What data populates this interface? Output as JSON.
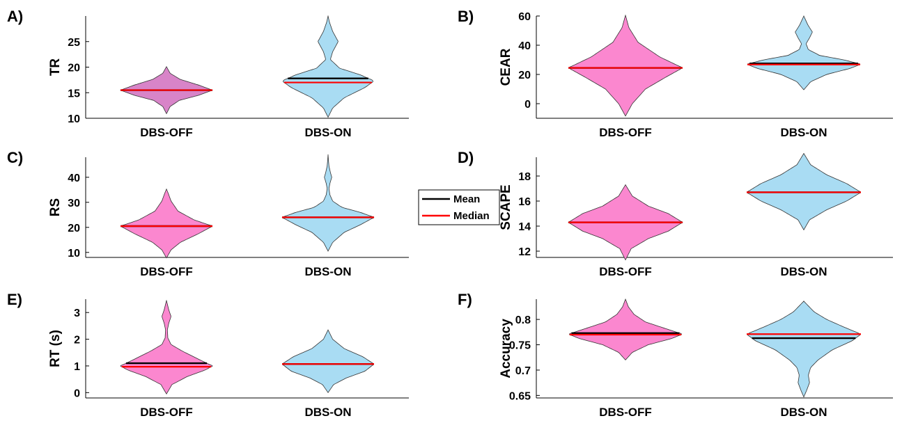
{
  "legend": {
    "items": [
      {
        "label": "Mean",
        "color": "#000000"
      },
      {
        "label": "Median",
        "color": "#ff0000"
      }
    ]
  },
  "chart_data": [
    {
      "panel": "A)",
      "type": "violin",
      "ylabel": "TR",
      "categories": [
        "DBS-OFF",
        "DBS-ON"
      ],
      "ylim": [
        10,
        30
      ],
      "yticks": [
        10,
        15,
        20,
        25
      ],
      "violins": [
        {
          "category": "DBS-OFF",
          "color": "#d884c8",
          "ymin": 10.9,
          "ymax": 20.1,
          "mean": 15.5,
          "median": 15.5,
          "shape": [
            [
              10.9,
              0
            ],
            [
              12.3,
              0.08
            ],
            [
              13.5,
              0.28
            ],
            [
              14.5,
              0.7
            ],
            [
              15.5,
              1.0
            ],
            [
              16.5,
              0.7
            ],
            [
              17.6,
              0.3
            ],
            [
              18.8,
              0.08
            ],
            [
              20.1,
              0
            ]
          ]
        },
        {
          "category": "DBS-ON",
          "color": "#a9dcf3",
          "ymin": 10.2,
          "ymax": 30.0,
          "mean": 17.8,
          "median": 17.0,
          "shape": [
            [
              10.2,
              0
            ],
            [
              12.0,
              0.1
            ],
            [
              14.0,
              0.35
            ],
            [
              16.0,
              0.8
            ],
            [
              17.3,
              1.0
            ],
            [
              18.5,
              0.7
            ],
            [
              19.8,
              0.25
            ],
            [
              21.5,
              0.05
            ],
            [
              23.0,
              0.1
            ],
            [
              25.0,
              0.22
            ],
            [
              27.0,
              0.1
            ],
            [
              28.8,
              0.03
            ],
            [
              30.0,
              0
            ]
          ]
        }
      ]
    },
    {
      "panel": "B)",
      "type": "violin",
      "ylabel": "CEAR",
      "categories": [
        "DBS-OFF",
        "DBS-ON"
      ],
      "ylim": [
        -10,
        60
      ],
      "yticks": [
        0,
        20,
        40,
        60
      ],
      "violins": [
        {
          "category": "DBS-OFF",
          "color": "#fb87cf",
          "ymin": -8.5,
          "ymax": 60.5,
          "mean": 24.5,
          "median": 24.5,
          "shape": [
            [
              -8.5,
              0
            ],
            [
              0,
              0.12
            ],
            [
              10,
              0.35
            ],
            [
              18,
              0.7
            ],
            [
              24.5,
              1.0
            ],
            [
              32,
              0.6
            ],
            [
              42,
              0.22
            ],
            [
              52,
              0.06
            ],
            [
              60.5,
              0
            ]
          ]
        },
        {
          "category": "DBS-ON",
          "color": "#a9dcf3",
          "ymin": 9.5,
          "ymax": 60.0,
          "mean": 27.5,
          "median": 26.8,
          "shape": [
            [
              9.5,
              0
            ],
            [
              15,
              0.12
            ],
            [
              20,
              0.4
            ],
            [
              24,
              0.8
            ],
            [
              27,
              1.0
            ],
            [
              30,
              0.7
            ],
            [
              33,
              0.28
            ],
            [
              37,
              0.08
            ],
            [
              41,
              0.04
            ],
            [
              45,
              0.1
            ],
            [
              49,
              0.15
            ],
            [
              54,
              0.07
            ],
            [
              60,
              0
            ]
          ]
        }
      ]
    },
    {
      "panel": "C)",
      "type": "violin",
      "ylabel": "RS",
      "categories": [
        "DBS-OFF",
        "DBS-ON"
      ],
      "ylim": [
        8,
        48
      ],
      "yticks": [
        10,
        20,
        30,
        40
      ],
      "violins": [
        {
          "category": "DBS-OFF",
          "color": "#fb87cf",
          "ymin": 7.8,
          "ymax": 35.3,
          "mean": 20.5,
          "median": 20.5,
          "shape": [
            [
              7.8,
              0
            ],
            [
              11,
              0.1
            ],
            [
              14,
              0.3
            ],
            [
              17.5,
              0.7
            ],
            [
              20.5,
              1.0
            ],
            [
              23,
              0.6
            ],
            [
              26.5,
              0.25
            ],
            [
              30.5,
              0.1
            ],
            [
              33.5,
              0.04
            ],
            [
              35.3,
              0
            ]
          ]
        },
        {
          "category": "DBS-ON",
          "color": "#a9dcf3",
          "ymin": 10.5,
          "ymax": 49.0,
          "mean": 24.0,
          "median": 24.0,
          "shape": [
            [
              10.5,
              0
            ],
            [
              14,
              0.1
            ],
            [
              18,
              0.35
            ],
            [
              21,
              0.7
            ],
            [
              24,
              1.0
            ],
            [
              26,
              0.7
            ],
            [
              28,
              0.3
            ],
            [
              30.5,
              0.1
            ],
            [
              33,
              0.04
            ],
            [
              35.5,
              0.02
            ],
            [
              37.5,
              0.04
            ],
            [
              40,
              0.08
            ],
            [
              42,
              0.05
            ],
            [
              44.5,
              0.02
            ],
            [
              46.5,
              0.01
            ],
            [
              49,
              0
            ]
          ]
        }
      ]
    },
    {
      "panel": "D)",
      "type": "violin",
      "ylabel": "SCAPE",
      "categories": [
        "DBS-OFF",
        "DBS-ON"
      ],
      "ylim": [
        11.5,
        19.5
      ],
      "yticks": [
        12,
        14,
        16,
        18
      ],
      "violins": [
        {
          "category": "DBS-OFF",
          "color": "#fb87cf",
          "ymin": 11.3,
          "ymax": 17.3,
          "mean": 14.3,
          "median": 14.3,
          "shape": [
            [
              11.3,
              0
            ],
            [
              12.2,
              0.1
            ],
            [
              13.0,
              0.4
            ],
            [
              13.6,
              0.75
            ],
            [
              14.3,
              1.0
            ],
            [
              15.0,
              0.75
            ],
            [
              15.6,
              0.4
            ],
            [
              16.4,
              0.12
            ],
            [
              17.3,
              0
            ]
          ]
        },
        {
          "category": "DBS-ON",
          "color": "#a9dcf3",
          "ymin": 13.7,
          "ymax": 19.8,
          "mean": 16.7,
          "median": 16.7,
          "shape": [
            [
              13.7,
              0
            ],
            [
              14.5,
              0.1
            ],
            [
              15.3,
              0.4
            ],
            [
              16.0,
              0.75
            ],
            [
              16.7,
              1.0
            ],
            [
              17.4,
              0.75
            ],
            [
              18.1,
              0.4
            ],
            [
              18.9,
              0.12
            ],
            [
              19.8,
              0
            ]
          ]
        }
      ]
    },
    {
      "panel": "E)",
      "type": "violin",
      "ylabel": "RT (s)",
      "categories": [
        "DBS-OFF",
        "DBS-ON"
      ],
      "ylim": [
        -0.2,
        3.5
      ],
      "yticks": [
        0,
        1,
        2,
        3
      ],
      "violins": [
        {
          "category": "DBS-OFF",
          "color": "#fb87cf",
          "ymin": -0.05,
          "ymax": 3.45,
          "mean": 1.1,
          "median": 0.97,
          "shape": [
            [
              -0.05,
              0
            ],
            [
              0.3,
              0.12
            ],
            [
              0.6,
              0.45
            ],
            [
              0.85,
              0.85
            ],
            [
              1.0,
              1.0
            ],
            [
              1.25,
              0.7
            ],
            [
              1.55,
              0.35
            ],
            [
              1.8,
              0.1
            ],
            [
              2.05,
              0.03
            ],
            [
              2.35,
              0.02
            ],
            [
              2.6,
              0.05
            ],
            [
              2.85,
              0.1
            ],
            [
              3.1,
              0.05
            ],
            [
              3.45,
              0
            ]
          ]
        },
        {
          "category": "DBS-ON",
          "color": "#a9dcf3",
          "ymin": 0.0,
          "ymax": 2.35,
          "mean": 1.07,
          "median": 1.07,
          "shape": [
            [
              0.0,
              0
            ],
            [
              0.3,
              0.12
            ],
            [
              0.55,
              0.4
            ],
            [
              0.8,
              0.8
            ],
            [
              1.07,
              1.0
            ],
            [
              1.35,
              0.75
            ],
            [
              1.65,
              0.35
            ],
            [
              2.0,
              0.1
            ],
            [
              2.35,
              0
            ]
          ]
        }
      ]
    },
    {
      "panel": "F)",
      "type": "violin",
      "ylabel": "Accuracy",
      "categories": [
        "DBS-OFF",
        "DBS-ON"
      ],
      "ylim": [
        0.645,
        0.84
      ],
      "yticks": [
        0.65,
        0.7,
        0.75,
        0.8
      ],
      "ticklabels": [
        "0.65",
        "0.7",
        "0.75",
        "0.8"
      ],
      "violins": [
        {
          "category": "DBS-OFF",
          "color": "#fb87cf",
          "ymin": 0.72,
          "ymax": 0.84,
          "mean": 0.773,
          "median": 0.77,
          "shape": [
            [
              0.72,
              0
            ],
            [
              0.735,
              0.12
            ],
            [
              0.75,
              0.4
            ],
            [
              0.762,
              0.8
            ],
            [
              0.771,
              1.0
            ],
            [
              0.782,
              0.7
            ],
            [
              0.795,
              0.35
            ],
            [
              0.81,
              0.15
            ],
            [
              0.825,
              0.05
            ],
            [
              0.84,
              0
            ]
          ]
        },
        {
          "category": "DBS-ON",
          "color": "#a9dcf3",
          "ymin": 0.647,
          "ymax": 0.836,
          "mean": 0.763,
          "median": 0.771,
          "shape": [
            [
              0.647,
              0
            ],
            [
              0.66,
              0.05
            ],
            [
              0.675,
              0.1
            ],
            [
              0.69,
              0.08
            ],
            [
              0.705,
              0.12
            ],
            [
              0.72,
              0.25
            ],
            [
              0.74,
              0.5
            ],
            [
              0.758,
              0.85
            ],
            [
              0.771,
              1.0
            ],
            [
              0.785,
              0.7
            ],
            [
              0.8,
              0.4
            ],
            [
              0.815,
              0.18
            ],
            [
              0.836,
              0
            ]
          ]
        }
      ]
    }
  ]
}
